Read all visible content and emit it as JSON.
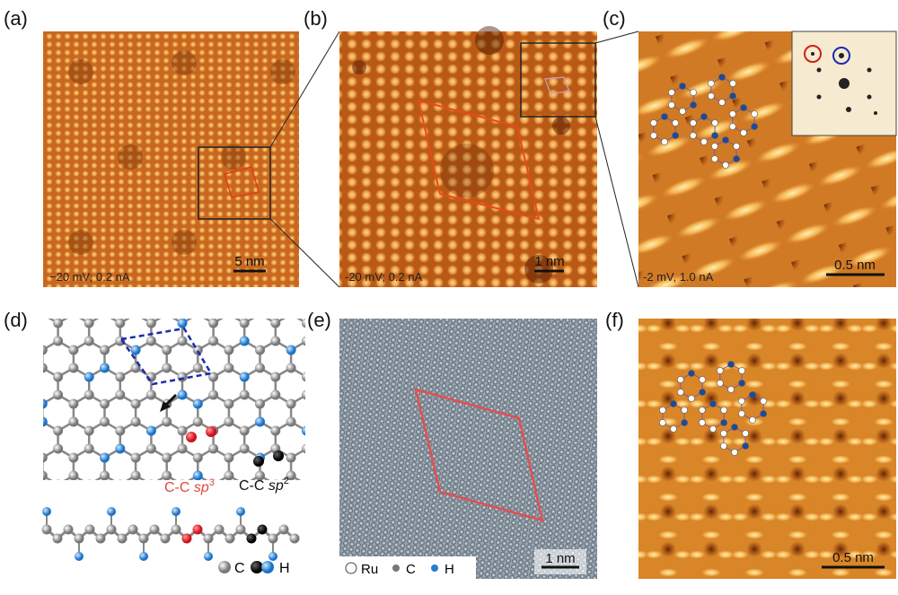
{
  "panels": [
    {
      "label": "(a)",
      "caption": "−20 mV; 0.2 nA",
      "scale_bar": "5 nm"
    },
    {
      "label": "(b)",
      "caption": "-20 mV; 0.2 nA",
      "scale_bar": "1 nm"
    },
    {
      "label": "(c)",
      "caption": "-2 mV, 1.0 nA",
      "scale_bar": "0.5 nm"
    },
    {
      "label": "(d)",
      "bond_labels": [
        {
          "text": "C-C",
          "hybrid": "sp",
          "exponent": "3"
        },
        {
          "text": "C-C",
          "hybrid": "sp",
          "exponent": "2"
        }
      ],
      "legend": [
        "C",
        "H"
      ]
    },
    {
      "label": "(e)",
      "legend": [
        "Ru",
        "C",
        "H"
      ],
      "scale_bar": "1 nm"
    },
    {
      "label": "(f)",
      "scale_bar": "0.5 nm"
    }
  ]
}
